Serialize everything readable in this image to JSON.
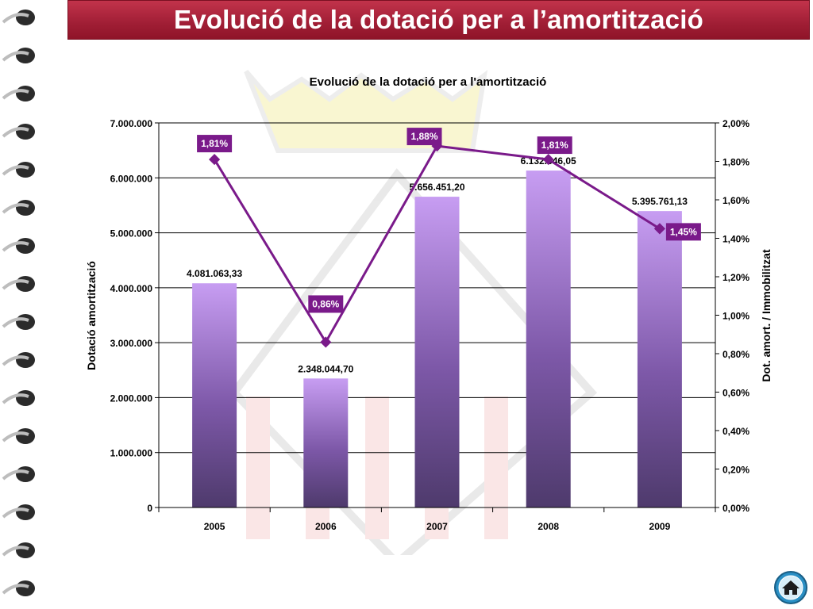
{
  "slide": {
    "title": "Evolució de la dotació per a l’amortització",
    "accent_color": "#a01e35"
  },
  "nav": {
    "home_icon": "home-icon"
  },
  "chart_data": {
    "type": "bar",
    "title": "Evolució de la dotació per a l'amortització",
    "categories": [
      "2005",
      "2006",
      "2007",
      "2008",
      "2009"
    ],
    "series": [
      {
        "type": "bar",
        "axis": "left",
        "values": [
          4081063.33,
          2348044.7,
          5656451.2,
          6132646.05,
          5395761.13
        ],
        "labels": [
          "4.081.063,33",
          "2.348.044,70",
          "5.656.451,20",
          "6.132.646,05",
          "5.395.761,13"
        ],
        "color": "#8a5fc0"
      },
      {
        "type": "line",
        "axis": "right",
        "values": [
          1.81,
          0.86,
          1.88,
          1.81,
          1.45
        ],
        "labels": [
          "1,81%",
          "0,86%",
          "1,88%",
          "1,81%",
          "1,45%"
        ],
        "color": "#7a1a8a"
      }
    ],
    "ylabel": "Dotació amortització",
    "y2label": "Dot. amort. / Immobilitzat",
    "ylim": [
      0,
      7000000
    ],
    "y2lim": [
      0,
      2.0
    ],
    "yticks": [
      "0",
      "1.000.000",
      "2.000.000",
      "3.000.000",
      "4.000.000",
      "5.000.000",
      "6.000.000",
      "7.000.000"
    ],
    "y2ticks": [
      "0,00%",
      "0,20%",
      "0,40%",
      "0,60%",
      "0,80%",
      "1,00%",
      "1,20%",
      "1,40%",
      "1,60%",
      "1,80%",
      "2,00%"
    ],
    "grid": true
  }
}
